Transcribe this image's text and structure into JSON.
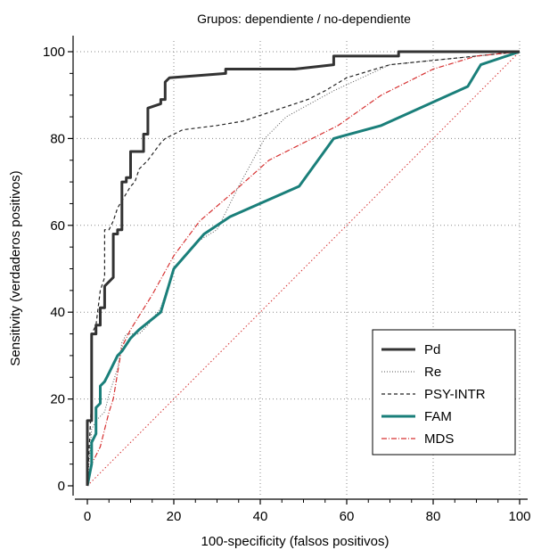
{
  "chart_data": {
    "type": "line",
    "title": "Grupos: dependiente / no-dependiente",
    "xlabel": "100-specificity (falsos positivos)",
    "ylabel": "Sensitivity (verdaderos positivos)",
    "xlim": [
      0,
      100
    ],
    "ylim": [
      0,
      100
    ],
    "xticks": [
      0,
      20,
      40,
      60,
      80,
      100
    ],
    "yticks": [
      0,
      20,
      40,
      60,
      80,
      100
    ],
    "grid": true,
    "legend_position": "bottom-right",
    "series": [
      {
        "name": "Pd",
        "color": "#333333",
        "style": "solid-thick",
        "points": [
          [
            0,
            0
          ],
          [
            0,
            15
          ],
          [
            1,
            15
          ],
          [
            1,
            35
          ],
          [
            2,
            35
          ],
          [
            2,
            37
          ],
          [
            3,
            37
          ],
          [
            3,
            41
          ],
          [
            4,
            41
          ],
          [
            4,
            46
          ],
          [
            5,
            47
          ],
          [
            6,
            48
          ],
          [
            6,
            58
          ],
          [
            7,
            58
          ],
          [
            7,
            59
          ],
          [
            8,
            59
          ],
          [
            8,
            70
          ],
          [
            9,
            70
          ],
          [
            9,
            71
          ],
          [
            10,
            71
          ],
          [
            10,
            77
          ],
          [
            12,
            77
          ],
          [
            13,
            77
          ],
          [
            13,
            81
          ],
          [
            14,
            81
          ],
          [
            14,
            87
          ],
          [
            17,
            88
          ],
          [
            17,
            89
          ],
          [
            18,
            89
          ],
          [
            18,
            93
          ],
          [
            19,
            94
          ],
          [
            32,
            95
          ],
          [
            32,
            96
          ],
          [
            48,
            96
          ],
          [
            57,
            97
          ],
          [
            57,
            99
          ],
          [
            72,
            99
          ],
          [
            72,
            100
          ],
          [
            100,
            100
          ]
        ]
      },
      {
        "name": "Re",
        "color": "#555555",
        "style": "dotted",
        "points": [
          [
            0,
            0
          ],
          [
            1,
            13
          ],
          [
            2,
            15
          ],
          [
            4,
            17
          ],
          [
            5,
            21
          ],
          [
            7,
            27
          ],
          [
            8,
            33
          ],
          [
            9,
            35
          ],
          [
            12,
            35
          ],
          [
            14,
            37
          ],
          [
            17,
            41
          ],
          [
            20,
            50
          ],
          [
            25,
            56
          ],
          [
            30,
            59
          ],
          [
            35,
            69
          ],
          [
            41,
            80
          ],
          [
            46,
            85
          ],
          [
            57,
            91
          ],
          [
            70,
            97
          ],
          [
            100,
            100
          ]
        ]
      },
      {
        "name": "PSY-INTR",
        "color": "#222222",
        "style": "dashed",
        "points": [
          [
            0,
            0
          ],
          [
            1,
            20
          ],
          [
            1,
            35
          ],
          [
            2,
            37
          ],
          [
            3,
            45
          ],
          [
            4,
            48
          ],
          [
            4,
            59
          ],
          [
            5,
            59
          ],
          [
            6,
            61
          ],
          [
            7,
            64
          ],
          [
            10,
            69
          ],
          [
            11,
            70
          ],
          [
            12,
            73
          ],
          [
            14,
            75
          ],
          [
            17,
            79
          ],
          [
            18,
            80
          ],
          [
            22,
            82
          ],
          [
            30,
            83
          ],
          [
            36,
            84
          ],
          [
            45,
            87
          ],
          [
            51,
            89
          ],
          [
            55,
            91
          ],
          [
            60,
            94
          ],
          [
            70,
            97
          ],
          [
            80,
            98
          ],
          [
            90,
            99
          ],
          [
            100,
            100
          ]
        ]
      },
      {
        "name": "FAM",
        "color": "#1a7f7a",
        "style": "solid-thick",
        "points": [
          [
            0,
            0
          ],
          [
            1,
            5
          ],
          [
            1,
            10
          ],
          [
            2,
            12
          ],
          [
            2,
            18
          ],
          [
            3,
            19
          ],
          [
            3,
            23
          ],
          [
            4,
            24
          ],
          [
            5,
            26
          ],
          [
            7,
            30
          ],
          [
            8,
            31
          ],
          [
            10,
            34
          ],
          [
            12,
            36
          ],
          [
            17,
            40
          ],
          [
            20,
            50
          ],
          [
            27,
            58
          ],
          [
            33,
            62
          ],
          [
            49,
            69
          ],
          [
            57,
            80
          ],
          [
            68,
            83
          ],
          [
            88,
            92
          ],
          [
            91,
            97
          ],
          [
            100,
            100
          ]
        ]
      },
      {
        "name": "MDS",
        "color": "#d63030",
        "style": "dashdot",
        "points": [
          [
            0,
            0
          ],
          [
            1,
            5
          ],
          [
            2,
            7
          ],
          [
            3,
            9
          ],
          [
            4,
            13
          ],
          [
            5,
            17
          ],
          [
            6,
            20
          ],
          [
            7,
            26
          ],
          [
            8,
            32
          ],
          [
            10,
            36
          ],
          [
            15,
            44
          ],
          [
            20,
            53
          ],
          [
            26,
            61
          ],
          [
            33,
            67
          ],
          [
            42,
            75
          ],
          [
            58,
            83
          ],
          [
            68,
            90
          ],
          [
            80,
            96
          ],
          [
            90,
            99
          ],
          [
            100,
            100
          ]
        ]
      },
      {
        "name": "",
        "color": "#d63030",
        "style": "dotted-fine",
        "points": [
          [
            0,
            0
          ],
          [
            100,
            100
          ]
        ]
      }
    ]
  }
}
